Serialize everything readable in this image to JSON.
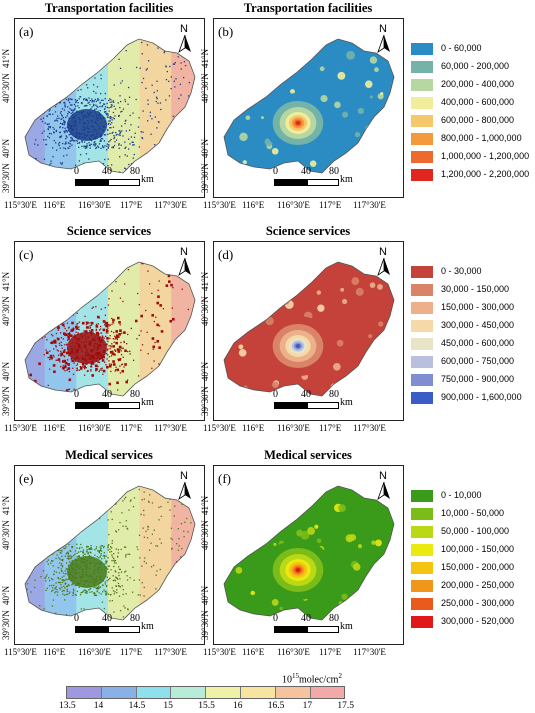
{
  "panels": [
    {
      "id": "a",
      "label": "(a)",
      "title": "Transportation facilities",
      "type": "surface"
    },
    {
      "id": "b",
      "label": "(b)",
      "title": "Transportation facilities",
      "type": "density"
    },
    {
      "id": "c",
      "label": "(c)",
      "title": "Science services",
      "type": "surface"
    },
    {
      "id": "d",
      "label": "(d)",
      "title": "Science services",
      "type": "density"
    },
    {
      "id": "e",
      "label": "(e)",
      "title": "Medical services",
      "type": "surface"
    },
    {
      "id": "f",
      "label": "(f)",
      "title": "Medical services",
      "type": "density"
    }
  ],
  "north_label": "N",
  "scale": {
    "ticks": [
      "0",
      "40",
      "80"
    ],
    "unit": "km"
  },
  "lat_labels": [
    "41°N",
    "40°30'N",
    "40°N",
    "39°30'N"
  ],
  "lon_labels": [
    "115°30'E",
    "116°E",
    "116°30'E",
    "117°E",
    "117°30'E"
  ],
  "legends": {
    "transportation": {
      "items": [
        {
          "label": "0 - 60,000",
          "color": "#2b8cc4"
        },
        {
          "label": "60,000 - 200,000",
          "color": "#73b3a8"
        },
        {
          "label": "200,000 - 400,000",
          "color": "#b6d7a2"
        },
        {
          "label": "400,000 - 600,000",
          "color": "#f0ee9c"
        },
        {
          "label": "600,000 - 800,000",
          "color": "#f6c86d"
        },
        {
          "label": "800,000 - 1,000,000",
          "color": "#f39a3d"
        },
        {
          "label": "1,000,000 - 1,200,000",
          "color": "#ec6a2b"
        },
        {
          "label": "1,200,000 - 2,200,000",
          "color": "#e0261e"
        }
      ]
    },
    "science": {
      "items": [
        {
          "label": "0 - 30,000",
          "color": "#c4423a"
        },
        {
          "label": "30,000 - 150,000",
          "color": "#d98368"
        },
        {
          "label": "150,000 - 300,000",
          "color": "#ecb08b"
        },
        {
          "label": "300,000 - 450,000",
          "color": "#f6d9a8"
        },
        {
          "label": "450,000 - 600,000",
          "color": "#e8e4c8"
        },
        {
          "label": "600,000 - 750,000",
          "color": "#b9bfdc"
        },
        {
          "label": "750,000 - 900,000",
          "color": "#7f8ed0"
        },
        {
          "label": "900,000 - 1,600,000",
          "color": "#3a5cc6"
        }
      ]
    },
    "medical": {
      "items": [
        {
          "label": "0 - 10,000",
          "color": "#3a9a1a"
        },
        {
          "label": "10,000 - 50,000",
          "color": "#7bbd18"
        },
        {
          "label": "50,000 - 100,000",
          "color": "#bad815"
        },
        {
          "label": "100,000 - 150,000",
          "color": "#eaea10"
        },
        {
          "label": "150,000 - 200,000",
          "color": "#f3c412"
        },
        {
          "label": "200,000 - 250,000",
          "color": "#f0961a"
        },
        {
          "label": "250,000 - 300,000",
          "color": "#ea5a1c"
        },
        {
          "label": "300,000 - 520,000",
          "color": "#e0181a"
        }
      ]
    }
  },
  "colorbar": {
    "title": "10^15molec/cm^2",
    "ticks": [
      "13.5",
      "14",
      "14.5",
      "15",
      "15.5",
      "16",
      "16.5",
      "17",
      "17.5"
    ],
    "colors": [
      "#9e98e0",
      "#8ab0e8",
      "#8ee0ec",
      "#b6ecd8",
      "#eef2a8",
      "#f6e4a0",
      "#f5c49e",
      "#f2a9a8"
    ]
  },
  "surface_colors": {
    "gradient": [
      "#9aa8e4",
      "#93c6ec",
      "#a3e4e6",
      "#e2ecaa",
      "#f3d5a0",
      "#f1b3a2"
    ],
    "transport_points": "#1a3c8a",
    "science_points": "#9e0c0c",
    "medical_points": "#4a7a18"
  }
}
